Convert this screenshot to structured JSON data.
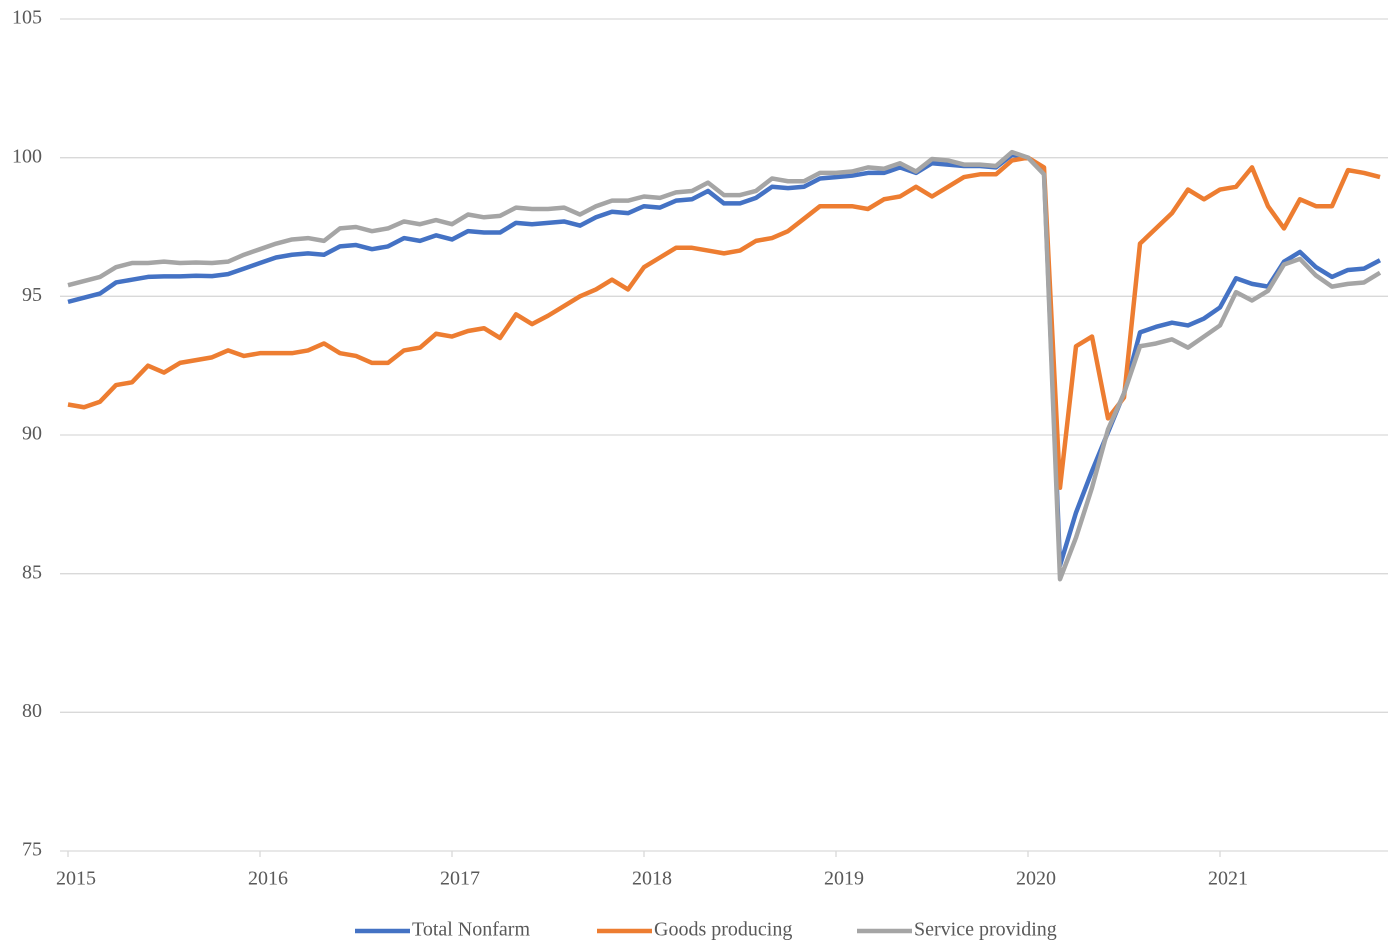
{
  "chart_data": {
    "type": "line",
    "categories": [
      "2015",
      null,
      null,
      null,
      null,
      null,
      null,
      null,
      null,
      null,
      null,
      null,
      "2016",
      null,
      null,
      null,
      null,
      null,
      null,
      null,
      null,
      null,
      null,
      null,
      "2017",
      null,
      null,
      null,
      null,
      null,
      null,
      null,
      null,
      null,
      null,
      null,
      "2018",
      null,
      null,
      null,
      null,
      null,
      null,
      null,
      null,
      null,
      null,
      null,
      "2019",
      null,
      null,
      null,
      null,
      null,
      null,
      null,
      null,
      null,
      null,
      null,
      "2020",
      null,
      null,
      null,
      null,
      null,
      null,
      null,
      null,
      null,
      null,
      null,
      "2021",
      null,
      null,
      null,
      null,
      null,
      null,
      null,
      null,
      null,
      null
    ],
    "series": [
      {
        "name": "Total Nonfarm",
        "color": "#4472c4",
        "values": [
          94.8,
          94.95,
          95.1,
          95.5,
          95.6,
          95.7,
          95.72,
          95.72,
          95.74,
          95.73,
          95.8,
          96.0,
          96.2,
          96.4,
          96.5,
          96.55,
          96.5,
          96.8,
          96.85,
          96.7,
          96.8,
          97.1,
          97.0,
          97.2,
          97.05,
          97.35,
          97.3,
          97.3,
          97.65,
          97.6,
          97.65,
          97.7,
          97.55,
          97.85,
          98.05,
          98.0,
          98.25,
          98.2,
          98.45,
          98.5,
          98.8,
          98.35,
          98.35,
          98.55,
          98.95,
          98.9,
          98.95,
          99.25,
          99.3,
          99.35,
          99.45,
          99.45,
          99.65,
          99.45,
          99.8,
          99.75,
          99.7,
          99.7,
          99.65,
          100.1,
          100.0,
          99.5,
          85.3,
          87.2,
          88.7,
          90.1,
          91.5,
          93.7,
          93.9,
          94.05,
          93.95,
          94.2,
          94.6,
          95.65,
          95.45,
          95.35,
          96.25,
          96.6,
          96.05,
          95.7,
          95.95,
          96.0,
          96.3
        ]
      },
      {
        "name": "Goods producing",
        "color": "#ed7d31",
        "values": [
          91.1,
          91.0,
          91.2,
          91.8,
          91.9,
          92.5,
          92.25,
          92.6,
          92.7,
          92.8,
          93.05,
          92.85,
          92.95,
          92.95,
          92.95,
          93.05,
          93.3,
          92.95,
          92.85,
          92.6,
          92.6,
          93.05,
          93.15,
          93.65,
          93.55,
          93.75,
          93.85,
          93.5,
          94.35,
          94.0,
          94.3,
          94.65,
          95.0,
          95.25,
          95.6,
          95.25,
          96.05,
          96.4,
          96.75,
          96.75,
          96.65,
          96.55,
          96.65,
          97.0,
          97.1,
          97.35,
          97.8,
          98.25,
          98.25,
          98.25,
          98.15,
          98.5,
          98.6,
          98.95,
          98.6,
          98.95,
          99.3,
          99.4,
          99.4,
          99.9,
          100.0,
          99.65,
          88.1,
          93.2,
          93.55,
          90.6,
          91.35,
          96.9,
          97.45,
          98.0,
          98.85,
          98.5,
          98.85,
          98.95,
          99.65,
          98.25,
          97.45,
          98.5,
          98.25,
          98.25,
          99.55,
          99.45,
          99.3
        ]
      },
      {
        "name": "Service providing",
        "color": "#a5a5a5",
        "values": [
          95.4,
          95.55,
          95.7,
          96.05,
          96.2,
          96.2,
          96.25,
          96.2,
          96.22,
          96.2,
          96.25,
          96.5,
          96.7,
          96.9,
          97.05,
          97.1,
          97.0,
          97.45,
          97.5,
          97.35,
          97.45,
          97.7,
          97.6,
          97.75,
          97.6,
          97.95,
          97.85,
          97.9,
          98.2,
          98.15,
          98.15,
          98.2,
          97.95,
          98.25,
          98.45,
          98.45,
          98.6,
          98.55,
          98.75,
          98.8,
          99.1,
          98.65,
          98.65,
          98.8,
          99.25,
          99.15,
          99.15,
          99.45,
          99.45,
          99.5,
          99.65,
          99.6,
          99.8,
          99.5,
          99.95,
          99.9,
          99.75,
          99.75,
          99.7,
          100.2,
          100.0,
          99.4,
          84.8,
          86.3,
          88.1,
          90.2,
          91.5,
          93.2,
          93.3,
          93.45,
          93.15,
          93.55,
          93.95,
          95.15,
          94.85,
          95.2,
          96.15,
          96.35,
          95.75,
          95.35,
          95.45,
          95.5,
          95.85
        ]
      }
    ],
    "ylim": [
      75,
      105
    ],
    "yticks": [
      75,
      80,
      85,
      90,
      95,
      100,
      105
    ],
    "grid": true,
    "legend": "bottom"
  }
}
